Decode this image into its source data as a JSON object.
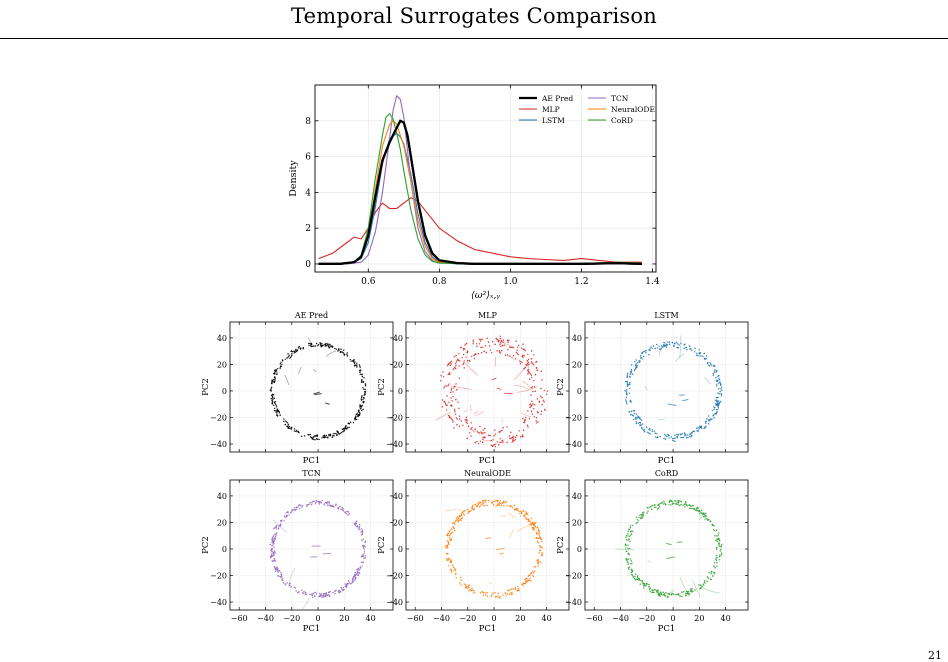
{
  "page": {
    "title": "Temporal Surrogates Comparison",
    "page_number": "21"
  },
  "chart_data": [
    {
      "id": "density",
      "type": "line",
      "title": "",
      "xlabel": "⟨ω²⟩ₓ,ᵧ",
      "ylabel": "Density",
      "xlim": [
        0.45,
        1.41
      ],
      "ylim": [
        -0.45,
        10.0
      ],
      "xticks": [
        0.6,
        0.8,
        1.0,
        1.2,
        1.4
      ],
      "yticks": [
        0,
        2,
        4,
        6,
        8
      ],
      "grid": true,
      "legend": {
        "position": "top-right",
        "columns": 2
      },
      "series": [
        {
          "name": "AE Pred",
          "color": "#000000",
          "width": 2.2,
          "x": [
            0.46,
            0.52,
            0.56,
            0.58,
            0.6,
            0.62,
            0.64,
            0.66,
            0.68,
            0.69,
            0.7,
            0.71,
            0.72,
            0.74,
            0.76,
            0.78,
            0.8,
            0.85,
            0.9,
            1.0,
            1.1,
            1.2,
            1.3,
            1.37
          ],
          "y": [
            0.0,
            0.0,
            0.1,
            0.4,
            1.6,
            3.8,
            5.8,
            6.8,
            7.6,
            8.0,
            7.9,
            7.2,
            6.0,
            3.5,
            1.6,
            0.6,
            0.2,
            0.05,
            0.0,
            0.0,
            0.0,
            0.0,
            0.05,
            0.0
          ]
        },
        {
          "name": "MLP",
          "color": "#d62728",
          "width": 1.1,
          "x": [
            0.46,
            0.5,
            0.54,
            0.56,
            0.58,
            0.6,
            0.62,
            0.64,
            0.66,
            0.68,
            0.7,
            0.72,
            0.74,
            0.76,
            0.78,
            0.8,
            0.85,
            0.9,
            1.0,
            1.05,
            1.1,
            1.15,
            1.2,
            1.25,
            1.3,
            1.37
          ],
          "y": [
            0.3,
            0.6,
            1.2,
            1.5,
            1.4,
            2.0,
            2.9,
            3.4,
            3.1,
            3.1,
            3.4,
            3.7,
            3.5,
            3.0,
            2.5,
            2.0,
            1.3,
            0.8,
            0.4,
            0.3,
            0.25,
            0.2,
            0.3,
            0.2,
            0.1,
            0.1
          ]
        },
        {
          "name": "LSTM",
          "color": "#1f77b4",
          "width": 1.1,
          "x": [
            0.46,
            0.52,
            0.56,
            0.58,
            0.6,
            0.62,
            0.64,
            0.66,
            0.68,
            0.69,
            0.7,
            0.72,
            0.74,
            0.76,
            0.78,
            0.8,
            0.85,
            0.9,
            1.0,
            1.2,
            1.37
          ],
          "y": [
            0.0,
            0.0,
            0.1,
            0.3,
            1.2,
            3.2,
            5.6,
            7.0,
            7.3,
            7.1,
            6.7,
            5.0,
            2.8,
            1.2,
            0.4,
            0.1,
            0.0,
            0.0,
            0.0,
            0.0,
            0.0
          ]
        },
        {
          "name": "TCN",
          "color": "#9467bd",
          "width": 1.1,
          "x": [
            0.46,
            0.54,
            0.58,
            0.6,
            0.62,
            0.64,
            0.66,
            0.67,
            0.68,
            0.69,
            0.7,
            0.71,
            0.72,
            0.74,
            0.76,
            0.78,
            0.8,
            0.9,
            1.0,
            1.2,
            1.37
          ],
          "y": [
            0.0,
            0.0,
            0.1,
            0.5,
            1.8,
            4.0,
            7.0,
            8.6,
            9.4,
            9.2,
            8.2,
            6.4,
            4.6,
            2.0,
            0.7,
            0.2,
            0.05,
            0.0,
            0.0,
            0.0,
            0.0
          ]
        },
        {
          "name": "NeuralODE",
          "color": "#ff7f0e",
          "width": 1.1,
          "x": [
            0.46,
            0.52,
            0.56,
            0.58,
            0.6,
            0.62,
            0.64,
            0.66,
            0.67,
            0.68,
            0.7,
            0.72,
            0.74,
            0.76,
            0.78,
            0.8,
            0.9,
            1.0,
            1.2,
            1.3,
            1.37
          ],
          "y": [
            0.0,
            0.0,
            0.1,
            0.4,
            1.6,
            4.2,
            6.6,
            7.8,
            8.0,
            7.8,
            6.6,
            4.6,
            2.4,
            1.0,
            0.3,
            0.1,
            0.0,
            0.0,
            0.0,
            0.05,
            0.0
          ]
        },
        {
          "name": "CoRD",
          "color": "#2ca02c",
          "width": 1.1,
          "x": [
            0.46,
            0.52,
            0.56,
            0.58,
            0.6,
            0.62,
            0.64,
            0.65,
            0.66,
            0.67,
            0.68,
            0.69,
            0.7,
            0.72,
            0.74,
            0.76,
            0.78,
            0.8,
            0.9,
            1.0,
            1.2,
            1.3,
            1.37
          ],
          "y": [
            0.0,
            0.0,
            0.1,
            0.5,
            2.0,
            4.8,
            7.2,
            8.2,
            8.4,
            8.1,
            7.3,
            6.4,
            5.2,
            3.0,
            1.4,
            0.5,
            0.15,
            0.05,
            0.0,
            0.0,
            0.0,
            0.1,
            0.05
          ]
        }
      ]
    },
    {
      "id": "pca",
      "type": "scatter",
      "xlabel": "PC1",
      "ylabel": "PC2",
      "xlim": [
        -67,
        57
      ],
      "ylim": [
        -46,
        52
      ],
      "xticks": [
        -60,
        -40,
        -20,
        0,
        20,
        40
      ],
      "yticks": [
        -40,
        -20,
        0,
        20,
        40
      ],
      "grid": true,
      "ring_radius": 35,
      "panels": [
        {
          "name": "AE Pred",
          "color": "#000000",
          "spread": 1.5,
          "streaks": 5,
          "show_xticks": false,
          "show_xlabel": true
        },
        {
          "name": "MLP",
          "color": "#d62728",
          "spread": 7.0,
          "streaks": 22,
          "show_xticks": false,
          "show_xlabel": true
        },
        {
          "name": "LSTM",
          "color": "#1f77b4",
          "spread": 2.2,
          "streaks": 6,
          "show_xticks": false,
          "show_xlabel": true
        },
        {
          "name": "TCN",
          "color": "#9467bd",
          "spread": 1.6,
          "streaks": 3,
          "show_xticks": true,
          "show_xlabel": true
        },
        {
          "name": "NeuralODE",
          "color": "#ff7f0e",
          "spread": 2.0,
          "streaks": 8,
          "show_xticks": true,
          "show_xlabel": true
        },
        {
          "name": "CoRD",
          "color": "#2ca02c",
          "spread": 2.0,
          "streaks": 7,
          "show_xticks": true,
          "show_xlabel": true
        }
      ]
    }
  ]
}
